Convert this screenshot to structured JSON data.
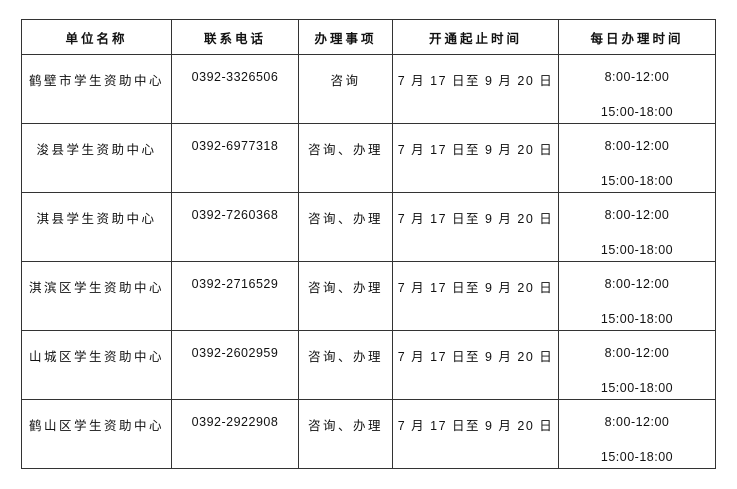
{
  "headers": [
    "单位名称",
    "联系电话",
    "办理事项",
    "开通起止时间",
    "每日办理时间"
  ],
  "rows": [
    {
      "name": "鹤壁市学生资助中心",
      "phone": "0392-3326506",
      "service": "咨询",
      "period": "7 月 17 日至 9 月 20 日",
      "morning": "8:00-12:00",
      "afternoon": "15:00-18:00"
    },
    {
      "name": "浚县学生资助中心",
      "phone": "0392-6977318",
      "service": "咨询、办理",
      "period": "7 月 17 日至 9 月 20 日",
      "morning": "8:00-12:00",
      "afternoon": "15:00-18:00"
    },
    {
      "name": "淇县学生资助中心",
      "phone": "0392-7260368",
      "service": "咨询、办理",
      "period": "7 月 17 日至 9 月 20 日",
      "morning": "8:00-12:00",
      "afternoon": "15:00-18:00"
    },
    {
      "name": "淇滨区学生资助中心",
      "phone": "0392-2716529",
      "service": "咨询、办理",
      "period": "7 月 17 日至 9 月 20 日",
      "morning": "8:00-12:00",
      "afternoon": "15:00-18:00"
    },
    {
      "name": "山城区学生资助中心",
      "phone": "0392-2602959",
      "service": "咨询、办理",
      "period": "7 月 17 日至 9 月 20 日",
      "morning": "8:00-12:00",
      "afternoon": "15:00-18:00"
    },
    {
      "name": "鹤山区学生资助中心",
      "phone": "0392-2922908",
      "service": "咨询、办理",
      "period": "7 月 17 日至 9 月 20 日",
      "morning": "8:00-12:00",
      "afternoon": "15:00-18:00"
    }
  ]
}
